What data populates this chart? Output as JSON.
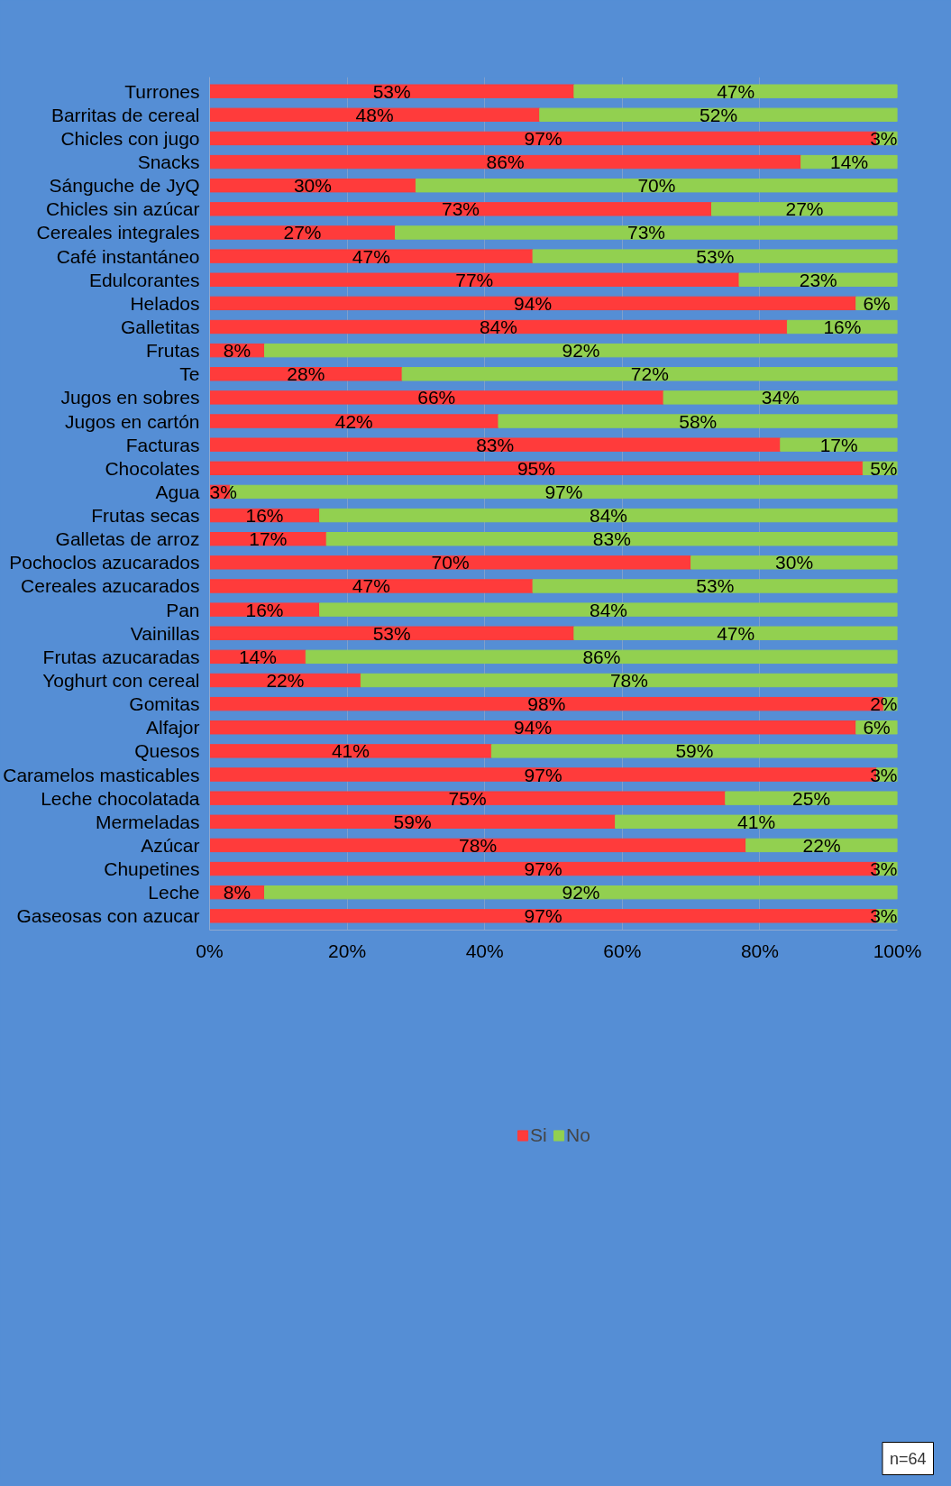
{
  "chart_data": {
    "type": "bar",
    "orientation": "horizontal",
    "stacked": true,
    "categories": [
      "Turrones",
      "Barritas de cereal",
      "Chicles con jugo",
      "Snacks",
      "Sánguche de JyQ",
      "Chicles sin azúcar",
      "Cereales integrales",
      "Café instantáneo",
      "Edulcorantes",
      "Helados",
      "Galletitas",
      "Frutas",
      "Te",
      "Jugos en sobres",
      "Jugos en cartón",
      "Facturas",
      "Chocolates",
      "Agua",
      "Frutas secas",
      "Galletas de arroz",
      "Pochoclos azucarados",
      "Cereales azucarados",
      "Pan",
      "Vainillas",
      "Frutas azucaradas",
      "Yoghurt con cereal",
      "Gomitas",
      "Alfajor",
      "Quesos",
      "Caramelos masticables",
      "Leche chocolatada",
      "Mermeladas",
      "Azúcar",
      "Chupetines",
      "Leche",
      "Gaseosas con azucar"
    ],
    "series": [
      {
        "name": "Si",
        "color": "#ff3b3b",
        "values": [
          53,
          48,
          97,
          86,
          30,
          73,
          27,
          47,
          77,
          94,
          84,
          8,
          28,
          66,
          42,
          83,
          95,
          3,
          16,
          17,
          70,
          47,
          16,
          53,
          14,
          22,
          98,
          94,
          41,
          97,
          75,
          59,
          78,
          97,
          8,
          97
        ],
        "value_labels": [
          "53%",
          "48%",
          "97%",
          "86%",
          "30%",
          "73%",
          "27%",
          "47%",
          "77%",
          "94%",
          "84%",
          "8%",
          "28%",
          "66%",
          "42%",
          "83%",
          "95%",
          "3%",
          "16%",
          "17%",
          "70%",
          "47%",
          "16%",
          "53%",
          "14%",
          "22%",
          "98%",
          "94%",
          "41%",
          "97%",
          "75%",
          "59%",
          "78%",
          "97%",
          "8%",
          "97%"
        ]
      },
      {
        "name": "No",
        "color": "#92d050",
        "values": [
          47,
          52,
          3,
          14,
          70,
          27,
          73,
          53,
          23,
          6,
          16,
          92,
          72,
          34,
          58,
          17,
          5,
          97,
          84,
          83,
          30,
          53,
          84,
          47,
          86,
          78,
          2,
          6,
          59,
          3,
          25,
          41,
          22,
          3,
          92,
          3
        ],
        "value_labels": [
          "47%",
          "52%",
          "3%",
          "14%",
          "70%",
          "27%",
          "73%",
          "53%",
          "23%",
          "6%",
          "16%",
          "92%",
          "72%",
          "34%",
          "58%",
          "17%",
          "5%",
          "97%",
          "84%",
          "83%",
          "30%",
          "53%",
          "84%",
          "47%",
          "86%",
          "78%",
          "2%",
          "6%",
          "59%",
          "3%",
          "25%",
          "41%",
          "22%",
          "3%",
          "92%",
          "3%"
        ]
      }
    ],
    "xlim": [
      0,
      100
    ],
    "xticks": [
      {
        "value": 0,
        "label": "0%"
      },
      {
        "value": 20,
        "label": "20%"
      },
      {
        "value": 40,
        "label": "40%"
      },
      {
        "value": 60,
        "label": "60%"
      },
      {
        "value": 80,
        "label": "80%"
      },
      {
        "value": 100,
        "label": "100%"
      }
    ],
    "grid": "x",
    "legend": "bottom",
    "annotations": [
      "n=64"
    ]
  }
}
